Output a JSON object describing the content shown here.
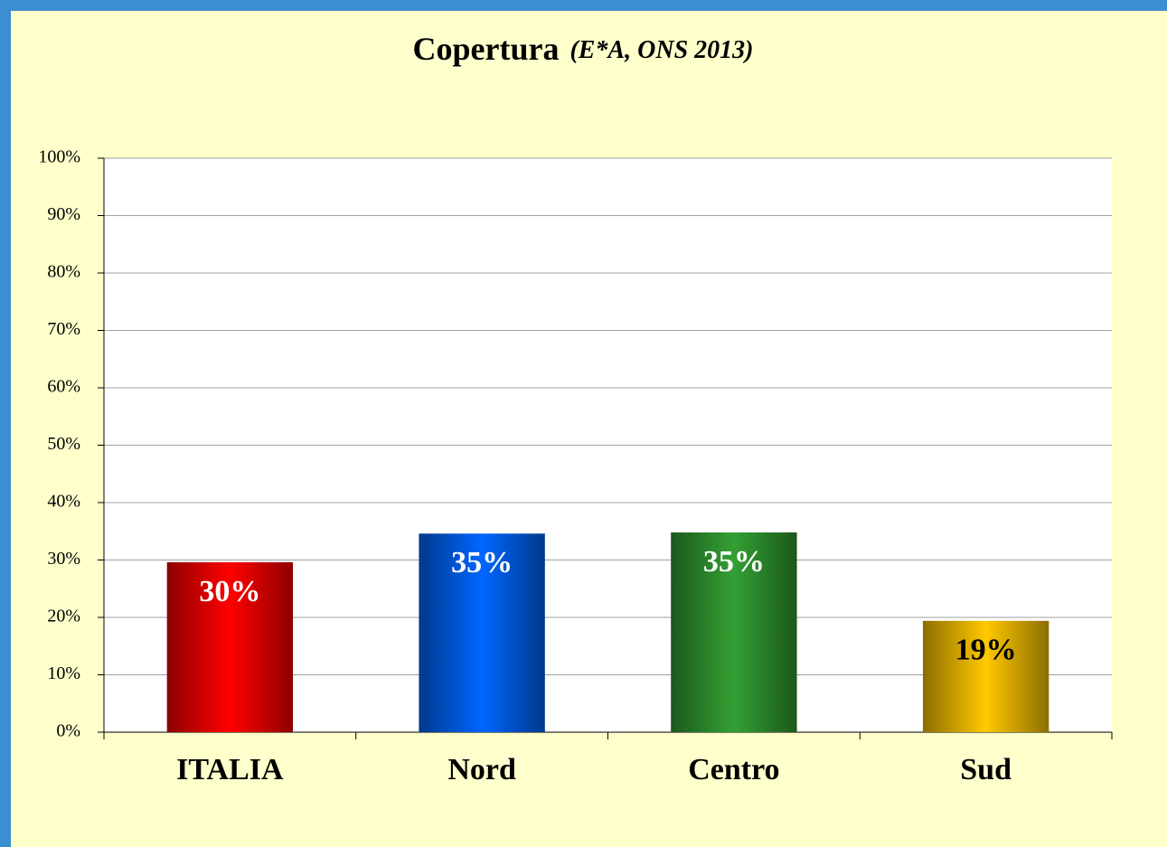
{
  "chart_data": {
    "type": "bar",
    "title": "Copertura",
    "subtitle": "(E*A, ONS 2013)",
    "categories": [
      "ITALIA",
      "Nord",
      "Centro",
      "Sud"
    ],
    "values": [
      29.6,
      34.6,
      34.8,
      19.4
    ],
    "value_labels": [
      "30%",
      "35%",
      "35%",
      "19%"
    ],
    "colors": [
      "#ff0000",
      "#0066ff",
      "#33a033",
      "#ffc800"
    ],
    "value_label_colors": [
      "#ffffff",
      "#ffffff",
      "#ffffff",
      "#000000"
    ],
    "ylim": [
      0,
      100
    ],
    "yticks": [
      {
        "value": 0,
        "label": "0%"
      },
      {
        "value": 10,
        "label": "10%"
      },
      {
        "value": 20,
        "label": "20%"
      },
      {
        "value": 30,
        "label": "30%"
      },
      {
        "value": 40,
        "label": "40%"
      },
      {
        "value": 50,
        "label": "50%"
      },
      {
        "value": 60,
        "label": "60%"
      },
      {
        "value": 70,
        "label": "70%"
      },
      {
        "value": 80,
        "label": "80%"
      },
      {
        "value": 90,
        "label": "90%"
      },
      {
        "value": 100,
        "label": "100%"
      }
    ],
    "grid": true
  }
}
